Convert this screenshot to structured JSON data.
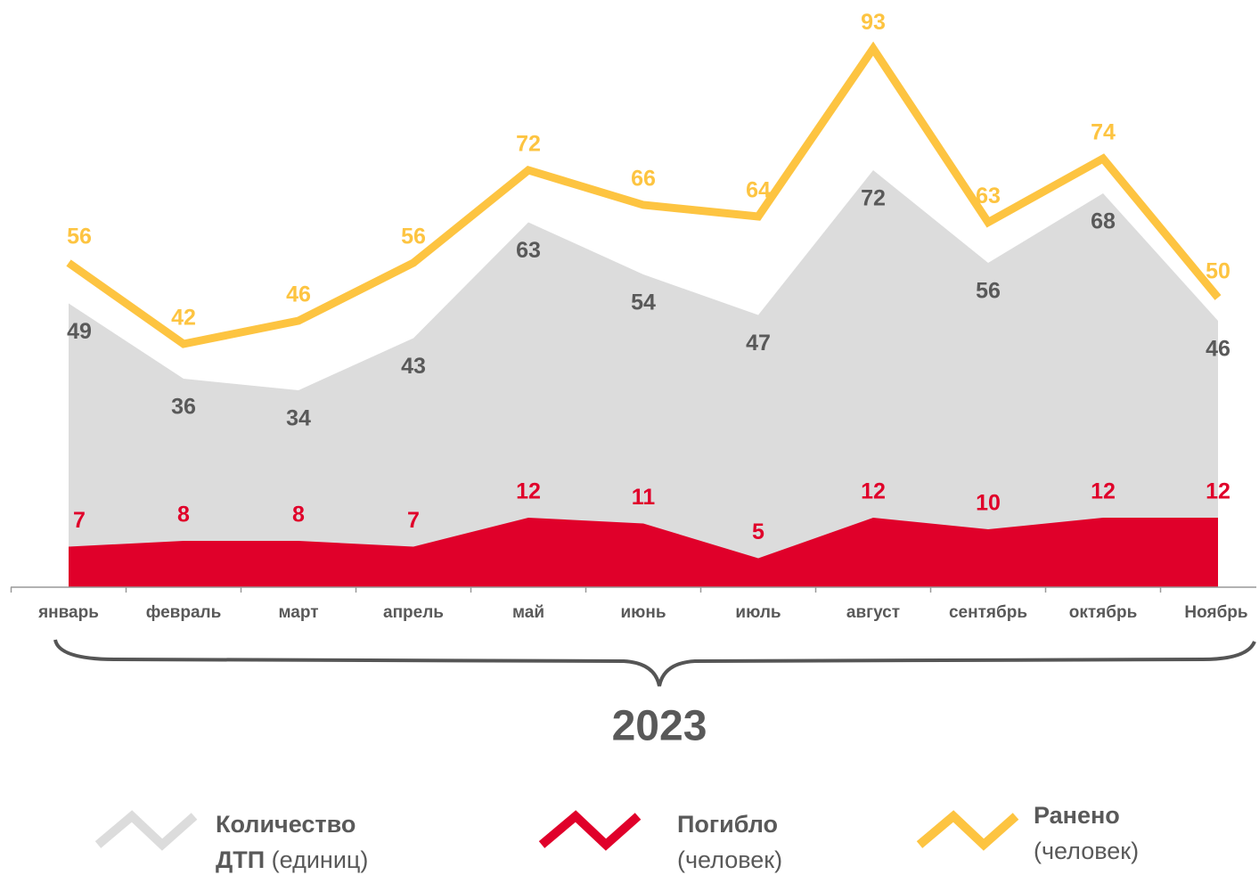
{
  "chart_data": {
    "type": "area",
    "categories": [
      "январь",
      "февраль",
      "март",
      "апрель",
      "май",
      "июнь",
      "июль",
      "август",
      "сентябрь",
      "октябрь",
      "Ноябрь"
    ],
    "period": "2023",
    "ylim": [
      0,
      100
    ],
    "series": [
      {
        "name": "Количество ДТП",
        "unit": "(единиц)",
        "type": "area",
        "color": "#dcdcdc",
        "label_color": "#595959",
        "values": [
          49,
          36,
          34,
          43,
          63,
          54,
          47,
          72,
          56,
          68,
          46
        ]
      },
      {
        "name": "Погибло",
        "unit": "(человек)",
        "type": "area",
        "color": "#e0002a",
        "label_color": "#e0002a",
        "values": [
          7,
          8,
          8,
          7,
          12,
          11,
          5,
          12,
          10,
          12,
          12
        ]
      },
      {
        "name": "Ранено",
        "unit": "(человек)",
        "type": "line",
        "color": "#fdc441",
        "label_color": "#fdc441",
        "values": [
          56,
          42,
          46,
          56,
          72,
          66,
          64,
          93,
          63,
          74,
          50
        ]
      }
    ]
  }
}
